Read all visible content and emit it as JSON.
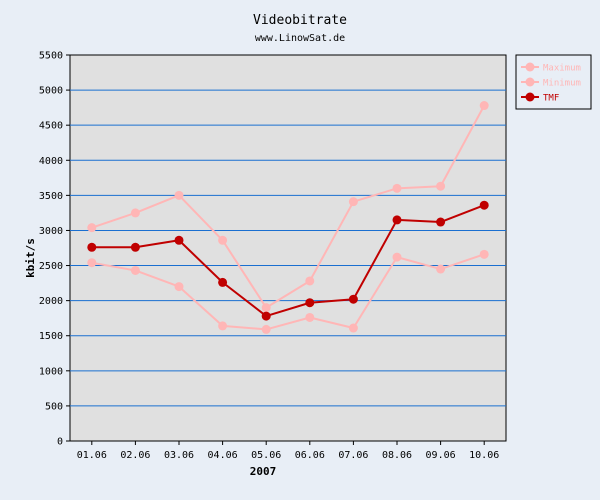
{
  "chart_data": {
    "type": "line",
    "title": "Videobitrate",
    "subtitle": "www.LinowSat.de",
    "xlabel": "2007",
    "ylabel": "kbit/s",
    "categories": [
      "01.06",
      "02.06",
      "03.06",
      "04.06",
      "05.06",
      "06.06",
      "07.06",
      "08.06",
      "09.06",
      "10.06"
    ],
    "ylim": [
      0,
      5500
    ],
    "yticks": [
      0,
      500,
      1000,
      1500,
      2000,
      2500,
      3000,
      3500,
      4000,
      4500,
      5000,
      5500
    ],
    "grid": "horizontal",
    "legend_position": "top-right",
    "series": [
      {
        "name": "Maximum",
        "color": "#ffb6b6",
        "values": [
          3040,
          3250,
          3500,
          2860,
          1900,
          2280,
          3410,
          3600,
          3630,
          4780
        ]
      },
      {
        "name": "Minimum",
        "color": "#ffb6b6",
        "values": [
          2540,
          2430,
          2200,
          1640,
          1590,
          1760,
          1610,
          2620,
          2450,
          2660
        ]
      },
      {
        "name": "TMF",
        "color": "#c00000",
        "values": [
          2760,
          2760,
          2860,
          2260,
          1780,
          1970,
          2020,
          3150,
          3120,
          3360
        ]
      }
    ],
    "colors": {
      "page_background": "#e8eef6",
      "plot_background": "#e0e0e0",
      "gridline": "#1a6fd0",
      "tmf_line": "#c00000",
      "minmax_line": "#ffb6b6"
    }
  }
}
